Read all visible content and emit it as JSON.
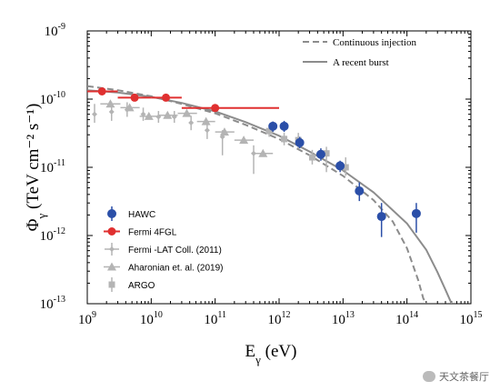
{
  "chart_data": {
    "type": "scatter",
    "xlabel_main": "E",
    "xlabel_sub": "γ",
    "xlabel_unit": " (eV)",
    "ylabel_main": "Φ",
    "ylabel_sub": "γ",
    "ylabel_unit": " (TeV cm⁻² s⁻¹)",
    "xscale": "log",
    "yscale": "log",
    "xlim": [
      1000000000.0,
      1000000000000000.0
    ],
    "ylim": [
      1e-13,
      1e-09
    ],
    "x_ticks": [
      {
        "base": "10",
        "exp": "9"
      },
      {
        "base": "10",
        "exp": "10"
      },
      {
        "base": "10",
        "exp": "11"
      },
      {
        "base": "10",
        "exp": "12"
      },
      {
        "base": "10",
        "exp": "13"
      },
      {
        "base": "10",
        "exp": "14"
      },
      {
        "base": "10",
        "exp": "15"
      }
    ],
    "y_ticks": [
      {
        "base": "10",
        "exp": "-13"
      },
      {
        "base": "10",
        "exp": "-12"
      },
      {
        "base": "10",
        "exp": "-11"
      },
      {
        "base": "10",
        "exp": "-10"
      },
      {
        "base": "10",
        "exp": "-9"
      }
    ],
    "legend_top": [
      "Continuous injection",
      "A recent burst"
    ],
    "legend_bottom": [
      "HAWC",
      "Fermi 4FGL",
      "Fermi -LAT Coll. (2011)",
      "Aharonian et. al. (2019)",
      "ARGO"
    ],
    "colors": {
      "hawc": "#2b4fa8",
      "fermi4fgl": "#e03030",
      "grey": "#b4b4b4",
      "model": "#8c8c8c"
    },
    "series": [
      {
        "name": "Continuous injection",
        "style": "dashed",
        "x": [
          1000000000.0,
          3000000000.0,
          10000000000.0,
          30000000000.0,
          100000000000.0,
          300000000000.0,
          1000000000000.0,
          3000000000000.0,
          10000000000000.0,
          30000000000000.0,
          60000000000000.0,
          100000000000000.0,
          150000000000000.0,
          180000000000000.0,
          200000000000000.0
        ],
        "y": [
          1.55e-10,
          1.35e-10,
          1.1e-10,
          8.5e-11,
          6.2e-11,
          4.2e-11,
          2.6e-11,
          1.5e-11,
          7.5e-12,
          3.3e-12,
          1.6e-12,
          6.5e-13,
          2.2e-13,
          1.2e-13,
          1e-13
        ]
      },
      {
        "name": "A recent burst",
        "style": "solid",
        "x": [
          1000000000.0,
          3000000000.0,
          10000000000.0,
          30000000000.0,
          100000000000.0,
          300000000000.0,
          1000000000000.0,
          3000000000000.0,
          10000000000000.0,
          30000000000000.0,
          100000000000000.0,
          200000000000000.0,
          300000000000000.0,
          400000000000000.0,
          500000000000000.0
        ],
        "y": [
          1.35e-10,
          1.25e-10,
          1.08e-10,
          8.8e-11,
          6.6e-11,
          4.6e-11,
          2.9e-11,
          1.7e-11,
          9e-12,
          4.3e-12,
          1.5e-12,
          6.2e-13,
          2.9e-13,
          1.6e-13,
          1e-13
        ]
      },
      {
        "name": "HAWC",
        "points": [
          {
            "x": 800000000000.0,
            "y": 4e-11,
            "ylo": 3.3e-11,
            "yhi": 4.7e-11
          },
          {
            "x": 1200000000000.0,
            "y": 4e-11,
            "ylo": 3.3e-11,
            "yhi": 4.8e-11
          },
          {
            "x": 2100000000000.0,
            "y": 2.3e-11,
            "ylo": 1.9e-11,
            "yhi": 2.8e-11
          },
          {
            "x": 4500000000000.0,
            "y": 1.55e-11,
            "ylo": 1.25e-11,
            "yhi": 1.9e-11
          },
          {
            "x": 9000000000000.0,
            "y": 1.05e-11,
            "ylo": 8.5e-12,
            "yhi": 1.25e-11
          },
          {
            "x": 18000000000000.0,
            "y": 4.5e-12,
            "ylo": 3.2e-12,
            "yhi": 6e-12
          },
          {
            "x": 40000000000000.0,
            "y": 1.9e-12,
            "ylo": 9.5e-13,
            "yhi": 3e-12
          },
          {
            "x": 140000000000000.0,
            "y": 2.1e-12,
            "ylo": 1.1e-12,
            "yhi": 3e-12
          }
        ]
      },
      {
        "name": "Fermi 4FGL",
        "points": [
          {
            "x": 1700000000.0,
            "y": 1.3e-10,
            "xlo": 1000000000.0,
            "xhi": 3000000000.0
          },
          {
            "x": 5500000000.0,
            "y": 1.05e-10,
            "xlo": 3000000000.0,
            "xhi": 10000000000.0
          },
          {
            "x": 17000000000.0,
            "y": 1.05e-10,
            "xlo": 10000000000.0,
            "xhi": 30000000000.0
          },
          {
            "x": 100000000000.0,
            "y": 7.4e-11,
            "xlo": 30000000000.0,
            "xhi": 1000000000000.0
          }
        ]
      },
      {
        "name": "Fermi -LAT Coll. (2011)",
        "points": [
          {
            "x": 1300000000.0,
            "y": 6e-11,
            "ylo": 4.5e-11,
            "yhi": 8.5e-11
          },
          {
            "x": 2400000000.0,
            "y": 6.5e-11,
            "ylo": 4.8e-11,
            "yhi": 9e-11
          },
          {
            "x": 4200000000.0,
            "y": 7e-11,
            "ylo": 5.5e-11,
            "yhi": 9e-11
          },
          {
            "x": 7500000000.0,
            "y": 6e-11,
            "ylo": 4.8e-11,
            "yhi": 7.5e-11
          },
          {
            "x": 13000000000.0,
            "y": 5.5e-11,
            "ylo": 4.5e-11,
            "yhi": 6.7e-11
          },
          {
            "x": 23000000000.0,
            "y": 5.5e-11,
            "ylo": 4.5e-11,
            "yhi": 6.7e-11
          },
          {
            "x": 42000000000.0,
            "y": 4.5e-11,
            "ylo": 3.5e-11,
            "yhi": 5.7e-11
          },
          {
            "x": 75000000000.0,
            "y": 3.5e-11,
            "ylo": 2.6e-11,
            "yhi": 4.7e-11
          },
          {
            "x": 130000000000.0,
            "y": 2.8e-11,
            "ylo": 1.5e-11,
            "yhi": 3.5e-11
          },
          {
            "x": 400000000000.0,
            "y": 1.6e-11,
            "ylo": 8e-12,
            "yhi": 2.1e-11
          }
        ]
      },
      {
        "name": "Aharonian et. al. (2019)",
        "points": [
          {
            "x": 2300000000.0,
            "y": 8.5e-11,
            "xlo": 1600000000.0,
            "xhi": 3300000000.0
          },
          {
            "x": 4600000000.0,
            "y": 7.5e-11,
            "xlo": 3300000000.0,
            "xhi": 6600000000.0
          },
          {
            "x": 9200000000.0,
            "y": 5.6e-11,
            "xlo": 6600000000.0,
            "xhi": 13000000000.0
          },
          {
            "x": 18000000000.0,
            "y": 5.8e-11,
            "xlo": 13000000000.0,
            "xhi": 26000000000.0
          },
          {
            "x": 36000000000.0,
            "y": 6.2e-11,
            "xlo": 26000000000.0,
            "xhi": 52000000000.0
          },
          {
            "x": 72000000000.0,
            "y": 4.7e-11,
            "xlo": 52000000000.0,
            "xhi": 100000000000.0
          },
          {
            "x": 140000000000.0,
            "y": 3.3e-11,
            "xlo": 100000000000.0,
            "xhi": 200000000000.0
          },
          {
            "x": 280000000000.0,
            "y": 2.5e-11,
            "xlo": 200000000000.0,
            "xhi": 400000000000.0
          },
          {
            "x": 560000000000.0,
            "y": 1.6e-11,
            "xlo": 400000000000.0,
            "xhi": 800000000000.0
          }
        ]
      },
      {
        "name": "ARGO",
        "points": [
          {
            "x": 700000000000.0,
            "y": 3.4e-11,
            "ylo": 2.8e-11,
            "yhi": 4e-11
          },
          {
            "x": 1200000000000.0,
            "y": 2.6e-11,
            "ylo": 2.1e-11,
            "yhi": 3.2e-11
          },
          {
            "x": 2000000000000.0,
            "y": 2.5e-11,
            "ylo": 1.9e-11,
            "yhi": 3.2e-11
          },
          {
            "x": 3300000000000.0,
            "y": 1.4e-11,
            "ylo": 1.1e-11,
            "yhi": 1.8e-11
          },
          {
            "x": 5500000000000.0,
            "y": 1.6e-11,
            "ylo": 8.5e-12,
            "yhi": 2e-11
          },
          {
            "x": 11000000000000.0,
            "y": 1e-11,
            "ylo": 7.5e-12,
            "yhi": 1.4e-11
          }
        ]
      }
    ]
  },
  "watermark": "天文茶餐厅"
}
